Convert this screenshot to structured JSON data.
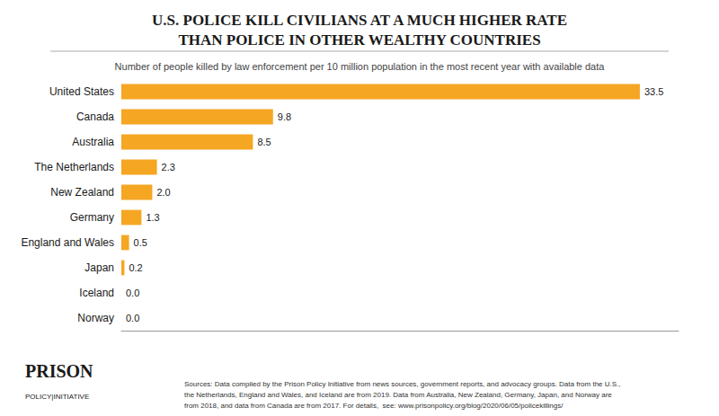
{
  "chart_data": {
    "type": "bar",
    "orientation": "horizontal",
    "title": "U.S. POLICE KILL CIVILIANS AT A MUCH HIGHER RATE\nTHAN POLICE IN OTHER WEALTHY COUNTRIES",
    "subtitle": "Number of people killed by law enforcement per 10 million population in the most recent year with available data",
    "categories": [
      "United States",
      "Canada",
      "Australia",
      "The Netherlands",
      "New Zealand",
      "Germany",
      "England and Wales",
      "Japan",
      "Iceland",
      "Norway"
    ],
    "values": [
      33.5,
      9.8,
      8.5,
      2.3,
      2.0,
      1.3,
      0.5,
      0.2,
      0.0,
      0.0
    ],
    "value_labels": [
      "33.5",
      "9.8",
      "8.5",
      "2.3",
      "2.0",
      "1.3",
      "0.5",
      "0.2",
      "0.0",
      "0.0"
    ],
    "data_labels": true,
    "color": "#F5A623",
    "xlim": [
      0,
      36
    ],
    "tick_labels": "y",
    "grid": false,
    "annotations": [
      "Sources: Data compiled by the Prison Policy Initiative from news sources, government reports, and advocacy groups. Data from the U.S.,\nthe Netherlands, England and Wales, and Iceland are from 2019. Data from Australia, New Zealand, Germany, Japan, and Norway are\nfrom 2018, and data from Canada are from 2017. For details,  see: www.prisonpolicy.org/blog/2020/06/05/policekillings/",
      "PRISON",
      "POLICY|INITIATIVE"
    ]
  }
}
